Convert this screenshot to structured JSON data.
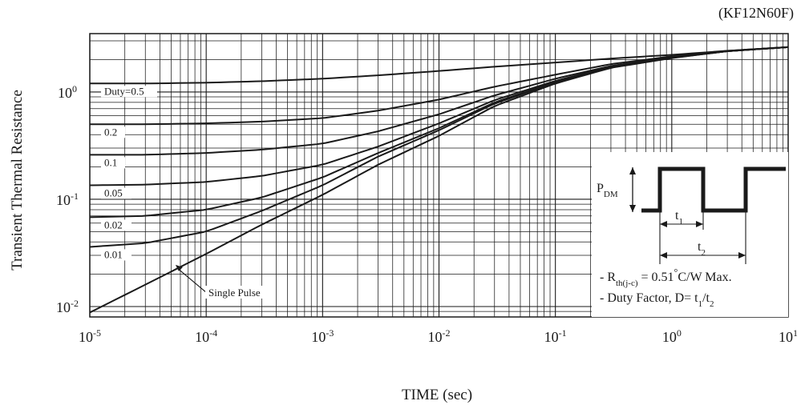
{
  "part_number": "(KF12N60F)",
  "chart_data": {
    "type": "line",
    "title": "",
    "xlabel": "TIME (sec)",
    "ylabel": "Transient Thermal Resistance",
    "x_scale": "log",
    "y_scale": "log",
    "xlim": [
      1e-05,
      10
    ],
    "ylim": [
      0.008,
      3.5
    ],
    "x_ticks": [
      {
        "value": 1e-05,
        "base": "10",
        "exp": "-5"
      },
      {
        "value": 0.0001,
        "base": "10",
        "exp": "-4"
      },
      {
        "value": 0.001,
        "base": "10",
        "exp": "-3"
      },
      {
        "value": 0.01,
        "base": "10",
        "exp": "-2"
      },
      {
        "value": 0.1,
        "base": "10",
        "exp": "-1"
      },
      {
        "value": 1,
        "base": "10",
        "exp": "0"
      },
      {
        "value": 10,
        "base": "10",
        "exp": "1"
      }
    ],
    "y_ticks": [
      {
        "value": 0.01,
        "base": "10",
        "exp": "-2"
      },
      {
        "value": 0.1,
        "base": "10",
        "exp": "-1"
      },
      {
        "value": 1,
        "base": "10",
        "exp": "0"
      }
    ],
    "grid": true,
    "series": [
      {
        "name": "Duty=0.5",
        "x": [
          1e-05,
          3e-05,
          0.0001,
          0.0003,
          0.001,
          0.003,
          0.01,
          0.03,
          0.1,
          0.3,
          1,
          3,
          10
        ],
        "y": [
          1.2,
          1.2,
          1.22,
          1.26,
          1.33,
          1.43,
          1.57,
          1.72,
          1.88,
          2.05,
          2.22,
          2.42,
          2.62
        ]
      },
      {
        "name": "0.2",
        "x": [
          1e-05,
          3e-05,
          0.0001,
          0.0003,
          0.001,
          0.003,
          0.01,
          0.03,
          0.1,
          0.3,
          1,
          3,
          10
        ],
        "y": [
          0.5,
          0.5,
          0.51,
          0.53,
          0.57,
          0.67,
          0.85,
          1.12,
          1.45,
          1.82,
          2.15,
          2.42,
          2.62
        ]
      },
      {
        "name": "0.1",
        "x": [
          1e-05,
          3e-05,
          0.0001,
          0.0003,
          0.001,
          0.003,
          0.01,
          0.03,
          0.1,
          0.3,
          1,
          3,
          10
        ],
        "y": [
          0.26,
          0.26,
          0.27,
          0.29,
          0.33,
          0.43,
          0.62,
          0.93,
          1.33,
          1.75,
          2.12,
          2.4,
          2.62
        ]
      },
      {
        "name": "0.05",
        "x": [
          1e-05,
          3e-05,
          0.0001,
          0.0003,
          0.001,
          0.003,
          0.01,
          0.03,
          0.1,
          0.3,
          1,
          3,
          10
        ],
        "y": [
          0.135,
          0.137,
          0.145,
          0.165,
          0.21,
          0.31,
          0.51,
          0.84,
          1.27,
          1.72,
          2.1,
          2.4,
          2.62
        ]
      },
      {
        "name": "0.02",
        "x": [
          1e-05,
          3e-05,
          0.0001,
          0.0003,
          0.001,
          0.003,
          0.01,
          0.03,
          0.1,
          0.3,
          1,
          3,
          10
        ],
        "y": [
          0.068,
          0.07,
          0.08,
          0.104,
          0.16,
          0.27,
          0.46,
          0.8,
          1.24,
          1.7,
          2.09,
          2.4,
          2.62
        ]
      },
      {
        "name": "0.01",
        "x": [
          1e-05,
          3e-05,
          0.0001,
          0.0003,
          0.001,
          0.003,
          0.01,
          0.03,
          0.1,
          0.3,
          1,
          3,
          10
        ],
        "y": [
          0.036,
          0.039,
          0.05,
          0.078,
          0.135,
          0.25,
          0.44,
          0.78,
          1.22,
          1.69,
          2.08,
          2.4,
          2.62
        ]
      },
      {
        "name": "Single Pulse",
        "x": [
          1e-05,
          3e-05,
          0.0001,
          0.0003,
          0.001,
          0.003,
          0.01,
          0.03,
          0.1,
          0.3,
          1,
          3,
          10
        ],
        "y": [
          0.0088,
          0.016,
          0.031,
          0.058,
          0.11,
          0.21,
          0.39,
          0.74,
          1.2,
          1.68,
          2.07,
          2.4,
          2.62
        ]
      }
    ],
    "annotations": {
      "pdm_label": "P",
      "pdm_sub": "DM",
      "t1_label": "t",
      "t1_sub": "1",
      "t2_label": "t",
      "t2_sub": "2",
      "note1_prefix": "- R",
      "note1_sub": "th(j-c)",
      "note1_suffix": " = 0.51",
      "note1_deg": "°",
      "note1_end": "C/W Max.",
      "note2_prefix": "- Duty Factor, D= t",
      "note2_sub1": "1",
      "note2_mid": "/t",
      "note2_sub2": "2"
    }
  }
}
